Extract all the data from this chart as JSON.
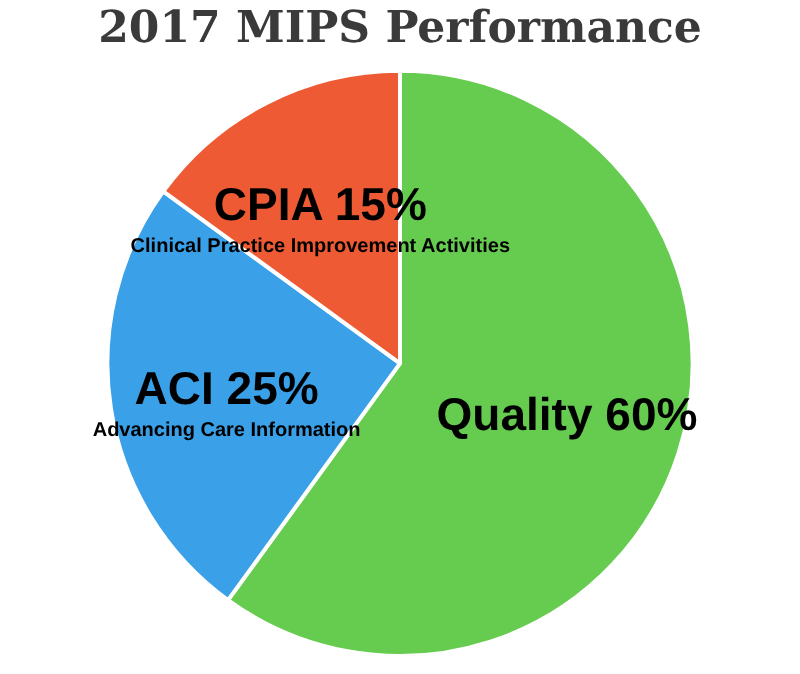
{
  "chart_data": {
    "type": "pie",
    "title": "2017 MIPS Performance",
    "categories": [
      "Quality",
      "ACI",
      "CPIA"
    ],
    "values": [
      60,
      25,
      15
    ],
    "value_labels": [
      "60%",
      "25%",
      "15%"
    ],
    "colors": [
      "#66cc4f",
      "#3aa0e8",
      "#ee5a33"
    ],
    "annotations": [
      "Advancing Care Information",
      "Clinical Practice Improvement Activities"
    ],
    "legend": false
  }
}
